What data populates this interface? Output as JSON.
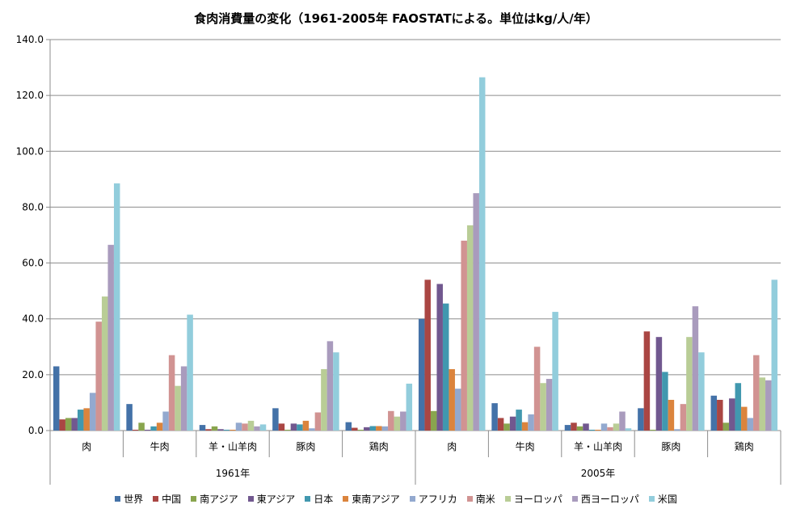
{
  "chart_data": {
    "type": "bar",
    "title": "食肉消費量の変化（1961-2005年 FAOSTATによる。単位はkg/人/年）",
    "ylim": [
      0,
      140
    ],
    "yticks": [
      "0.0",
      "20.0",
      "40.0",
      "60.0",
      "80.0",
      "100.0",
      "120.0",
      "140.0"
    ],
    "grid": true,
    "legend_position": "bottom",
    "groups": [
      {
        "label": "1961年",
        "categories": [
          "肉",
          "牛肉",
          "羊・山羊肉",
          "豚肉",
          "鶏肉"
        ]
      },
      {
        "label": "2005年",
        "categories": [
          "肉",
          "牛肉",
          "羊・山羊肉",
          "豚肉",
          "鶏肉"
        ]
      }
    ],
    "series": [
      {
        "name": "世界",
        "color": "#4472A8",
        "values": [
          23.0,
          9.5,
          2.0,
          8.0,
          3.0,
          40.0,
          9.8,
          2.0,
          8.0,
          12.5
        ]
      },
      {
        "name": "中国",
        "color": "#AA4643",
        "values": [
          4.0,
          0.3,
          0.5,
          2.5,
          1.0,
          54.0,
          4.5,
          2.8,
          35.5,
          11.0
        ]
      },
      {
        "name": "南アジア",
        "color": "#89A54E",
        "values": [
          4.5,
          2.8,
          1.5,
          0.3,
          0.3,
          7.0,
          2.5,
          1.5,
          0.3,
          2.8
        ]
      },
      {
        "name": "東アジア",
        "color": "#71588F",
        "values": [
          4.5,
          0.3,
          0.5,
          2.5,
          1.2,
          52.5,
          5.0,
          2.5,
          33.5,
          11.5
        ]
      },
      {
        "name": "日本",
        "color": "#4198AF",
        "values": [
          7.5,
          1.5,
          0.3,
          2.2,
          1.6,
          45.5,
          7.5,
          0.3,
          21.0,
          17.0
        ]
      },
      {
        "name": "東南アジア",
        "color": "#DB843D",
        "values": [
          8.0,
          2.8,
          0.3,
          3.5,
          1.6,
          22.0,
          3.0,
          0.3,
          11.0,
          8.5
        ]
      },
      {
        "name": "アフリカ",
        "color": "#93A9CF",
        "values": [
          13.5,
          6.8,
          2.8,
          0.8,
          1.5,
          15.0,
          5.8,
          2.5,
          0.5,
          4.5
        ]
      },
      {
        "name": "南米",
        "color": "#D19392",
        "values": [
          39.0,
          27.0,
          2.5,
          6.5,
          7.0,
          68.0,
          30.0,
          1.2,
          9.5,
          27.0
        ]
      },
      {
        "name": "ヨーロッパ",
        "color": "#B9CD96",
        "values": [
          48.0,
          16.0,
          3.5,
          22.0,
          5.0,
          73.5,
          17.0,
          2.5,
          33.5,
          19.0
        ]
      },
      {
        "name": "西ヨーロッパ",
        "color": "#A99BBD",
        "values": [
          66.5,
          23.0,
          1.5,
          32.0,
          6.8,
          85.0,
          18.5,
          6.8,
          44.5,
          18.0
        ]
      },
      {
        "name": "米国",
        "color": "#92CDDC",
        "values": [
          88.5,
          41.5,
          2.2,
          28.0,
          16.8,
          126.5,
          42.5,
          0.8,
          28.0,
          54.0
        ]
      }
    ]
  }
}
